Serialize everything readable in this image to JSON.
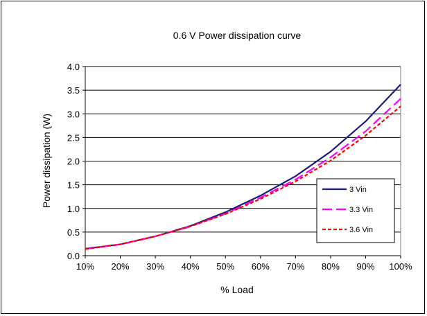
{
  "chart_data": {
    "type": "line",
    "title": "0.6 V Power dissipation curve",
    "xlabel": "% Load",
    "ylabel": "Power dissipation (W)",
    "categories": [
      "10%",
      "20%",
      "30%",
      "40%",
      "50%",
      "60%",
      "70%",
      "80%",
      "90%",
      "100%"
    ],
    "x": [
      10,
      20,
      30,
      40,
      50,
      60,
      70,
      80,
      90,
      100
    ],
    "ylim": [
      0.0,
      4.0
    ],
    "yticks": [
      "0.0",
      "0.5",
      "1.0",
      "1.5",
      "2.0",
      "2.5",
      "3.0",
      "3.5",
      "4.0"
    ],
    "ytick_values": [
      0,
      0.5,
      1.0,
      1.5,
      2.0,
      2.5,
      3.0,
      3.5,
      4.0
    ],
    "grid": "horizontal",
    "legend_position": "bottom-right",
    "series": [
      {
        "name": "3 Vin",
        "color": "#1a1a80",
        "dash": "solid",
        "values": [
          0.15,
          0.24,
          0.41,
          0.63,
          0.92,
          1.27,
          1.68,
          2.2,
          2.84,
          3.62
        ]
      },
      {
        "name": "3.3 Vin",
        "color": "#ff00ff",
        "dash": "long-dash",
        "values": [
          0.14,
          0.24,
          0.41,
          0.62,
          0.89,
          1.23,
          1.61,
          2.08,
          2.63,
          3.32
        ]
      },
      {
        "name": "3.6 Vin",
        "color": "#ff0000",
        "dash": "short-dash",
        "values": [
          0.14,
          0.24,
          0.41,
          0.62,
          0.88,
          1.2,
          1.57,
          2.01,
          2.54,
          3.16
        ]
      }
    ]
  }
}
